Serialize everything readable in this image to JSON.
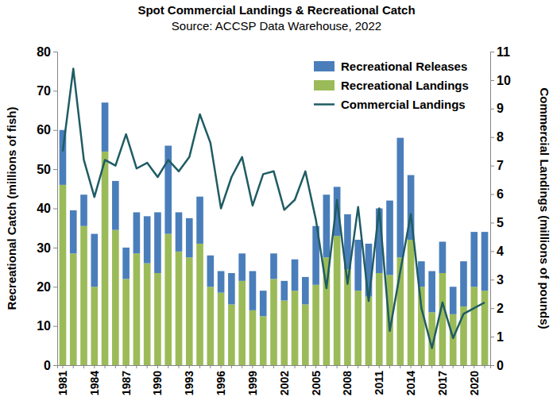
{
  "chart_data": {
    "type": "bar",
    "title": "Spot Commercial Landings & Recreational Catch",
    "subtitle": "Source: ACCSP Data Warehouse, 2022",
    "y_label": "Recreational Catch (millions of fish)",
    "y2_label": "Commercial Landings (millions of pounds)",
    "categories": [
      "1981",
      null,
      null,
      "1984",
      null,
      null,
      "1987",
      null,
      null,
      "1990",
      null,
      null,
      "1993",
      null,
      null,
      "1996",
      null,
      null,
      "1999",
      null,
      null,
      "2002",
      null,
      null,
      "2005",
      null,
      null,
      "2008",
      null,
      null,
      "2011",
      null,
      null,
      "2014",
      null,
      null,
      "2017",
      null,
      null,
      "2020",
      null
    ],
    "stacked": true,
    "legend": "top-right",
    "grid": false,
    "ylim": [
      0,
      80
    ],
    "yticks": [
      0,
      10,
      20,
      30,
      40,
      50,
      60,
      70,
      80
    ],
    "y2lim": [
      0,
      11
    ],
    "y2ticks": [
      0,
      1,
      2,
      3,
      4,
      5,
      6,
      7,
      8,
      9,
      10,
      11
    ],
    "series": [
      {
        "name": "Recreational Landings",
        "type": "bar",
        "color": "#9bbb59",
        "values": [
          46,
          28.5,
          35.5,
          20,
          54.5,
          34.5,
          22,
          28.5,
          26,
          23.5,
          33.5,
          29,
          27.5,
          31,
          20,
          18.5,
          15.5,
          21.5,
          14,
          12.5,
          22,
          16.5,
          19,
          15.5,
          20.5,
          27.5,
          33,
          24.5,
          19,
          17.5,
          23.5,
          23,
          27.5,
          32,
          20,
          13.5,
          23.5,
          13,
          15,
          20,
          19
        ]
      },
      {
        "name": "Recreational Releases",
        "type": "bar",
        "color": "#4a7ebb",
        "values": [
          14,
          11,
          8,
          13.5,
          12.5,
          12.5,
          8,
          10.5,
          12,
          15.5,
          22.5,
          10,
          10,
          12,
          8,
          5.5,
          8,
          7,
          10,
          6.5,
          6.5,
          5,
          8,
          7,
          15,
          16,
          12.5,
          14,
          13,
          13.5,
          16.5,
          19,
          30.5,
          16.5,
          6.5,
          10.5,
          8,
          7,
          11.5,
          14,
          15
        ]
      },
      {
        "name": "Commercial Landings",
        "type": "line",
        "axis": "y2",
        "color": "#1f5c64",
        "values": [
          7.5,
          10.4,
          7.2,
          5.9,
          7.2,
          7.0,
          8.1,
          6.9,
          7.1,
          6.6,
          7.2,
          6.8,
          7.3,
          8.8,
          7.8,
          5.5,
          6.6,
          7.3,
          5.6,
          6.7,
          6.8,
          5.45,
          5.8,
          6.8,
          5.1,
          2.7,
          5.8,
          2.85,
          5.55,
          2.25,
          5.5,
          1.2,
          3.3,
          5.3,
          2.0,
          0.6,
          2.2,
          0.95,
          1.8,
          2.0,
          2.2
        ]
      }
    ]
  }
}
